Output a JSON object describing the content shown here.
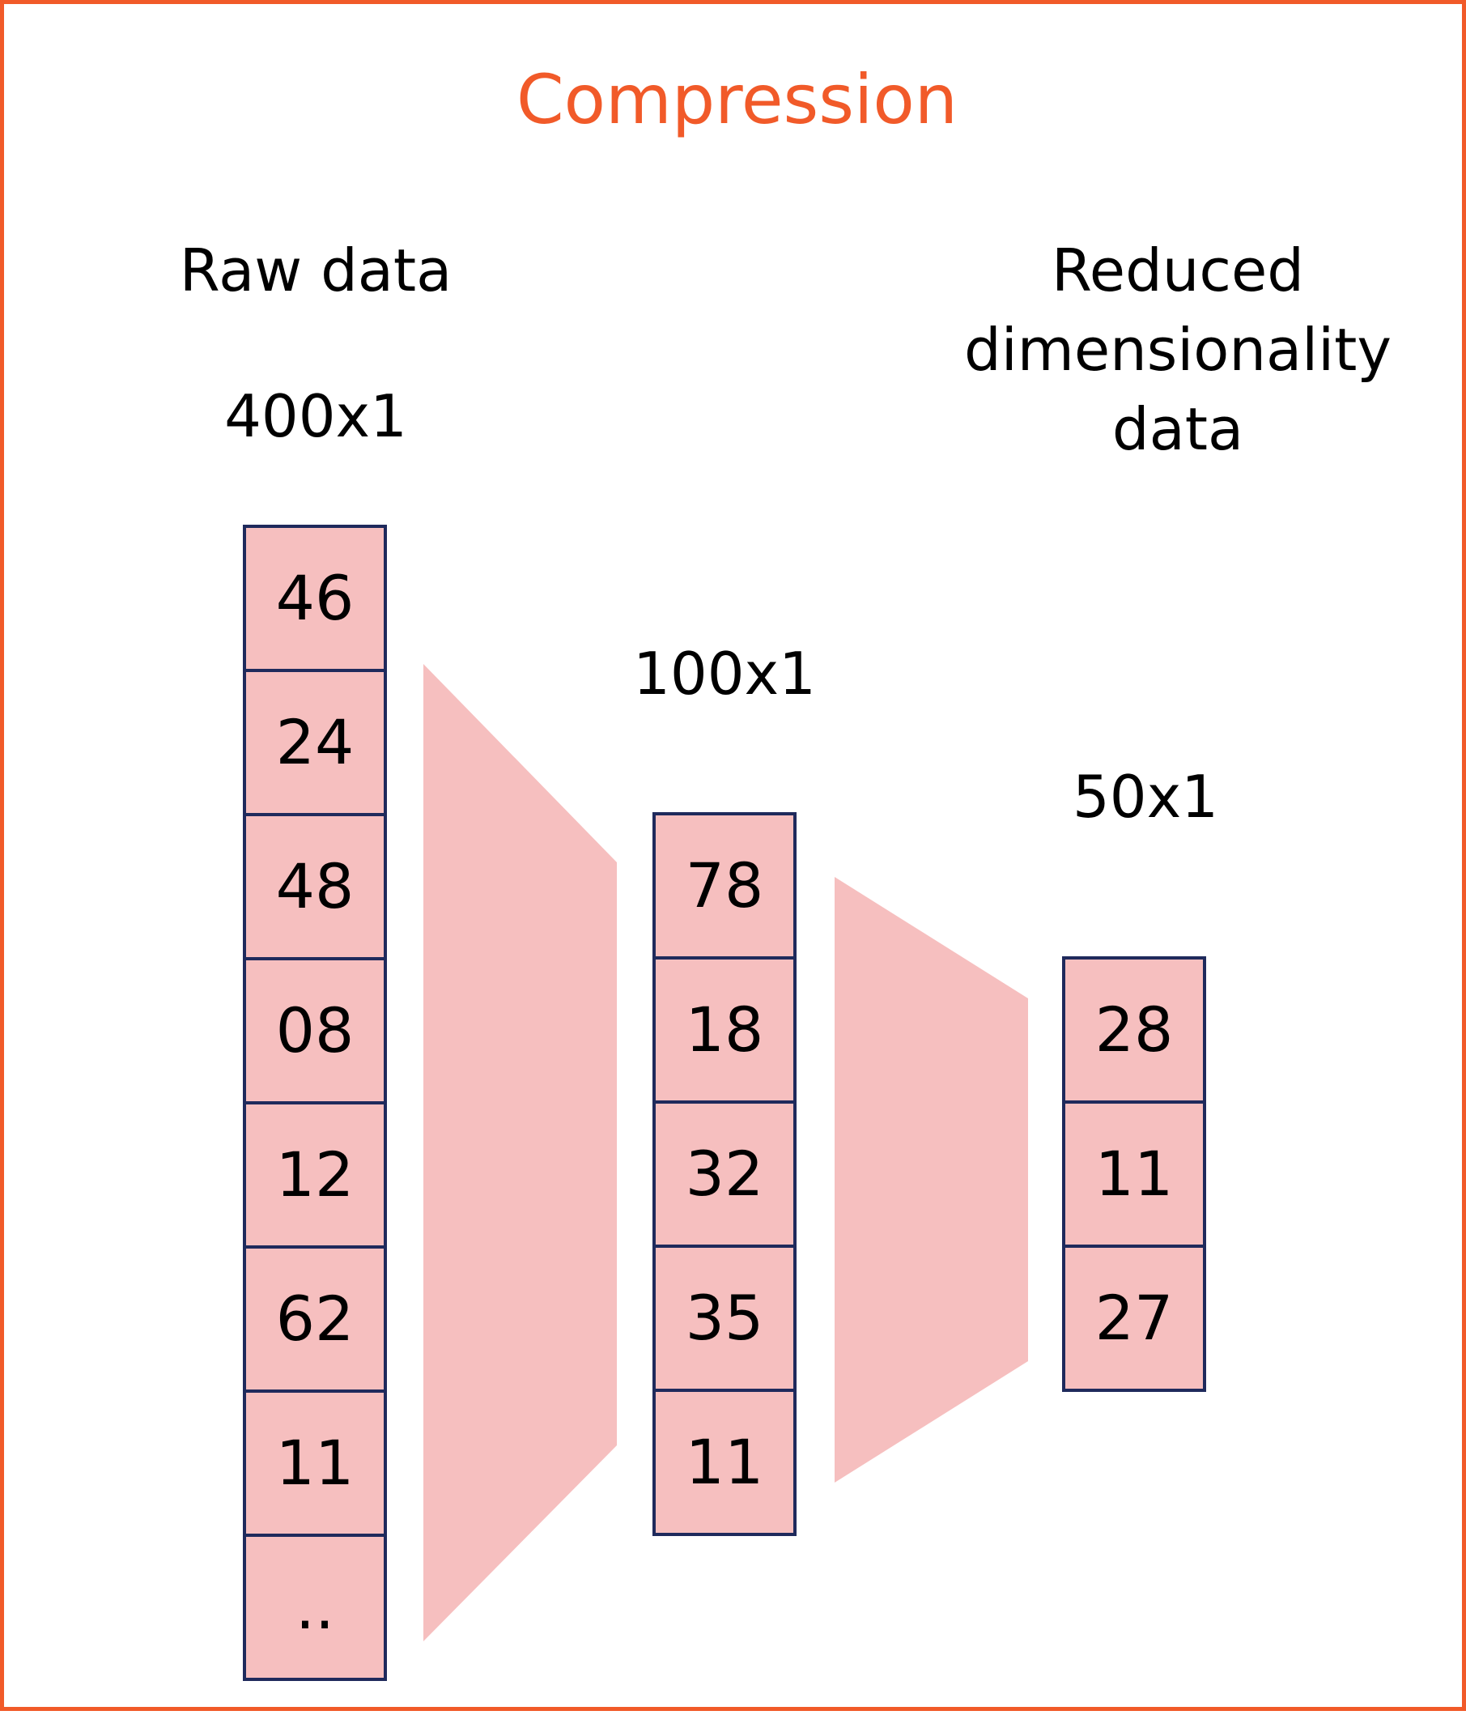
{
  "title": "Compression",
  "raw": {
    "heading": "Raw data",
    "size": "400x1",
    "cells": [
      "46",
      "24",
      "48",
      "08",
      "12",
      "62",
      "11",
      ".."
    ]
  },
  "middle": {
    "size": "100x1",
    "cells": [
      "78",
      "18",
      "32",
      "35",
      "11"
    ]
  },
  "reduced": {
    "heading": [
      "Reduced",
      "dimensionality",
      "data"
    ],
    "size": "50x1",
    "cells": [
      "28",
      "11",
      "27"
    ]
  },
  "colors": {
    "accent": "#f15a29",
    "cell_fill": "#f6bfbf",
    "cell_border": "#1f2a5c",
    "funnel_fill": "#f6bfbf"
  }
}
